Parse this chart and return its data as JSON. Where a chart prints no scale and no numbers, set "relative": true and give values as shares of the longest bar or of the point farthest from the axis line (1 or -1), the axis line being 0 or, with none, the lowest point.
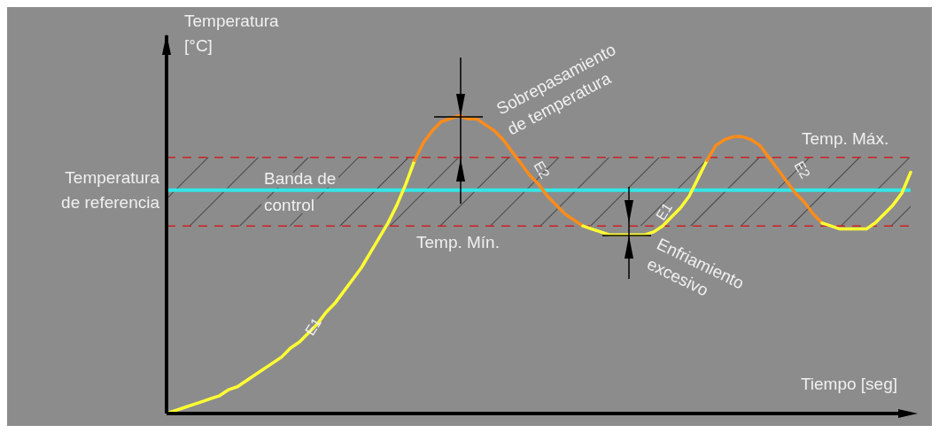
{
  "chart_data": {
    "type": "line",
    "relative": true,
    "xlabel": "Tiempo [seg]",
    "ylabel": "Temperatura [°C]",
    "categories": [
      null,
      null,
      null,
      null,
      null,
      null,
      null,
      null,
      null,
      null,
      null,
      null,
      null,
      null,
      null,
      null,
      null,
      null,
      null,
      null,
      null,
      null,
      null,
      null,
      null,
      null,
      null,
      null,
      null,
      null,
      null,
      null,
      null,
      null,
      null,
      null,
      null,
      null,
      null,
      null,
      null,
      null,
      null,
      null,
      null,
      null,
      null,
      null,
      null,
      null,
      null,
      null,
      null,
      null,
      null,
      null,
      null,
      null,
      null,
      null,
      null,
      null,
      null,
      null,
      null,
      null,
      null,
      null,
      null,
      null,
      null,
      null,
      null,
      null,
      null,
      null,
      null,
      null,
      null,
      null,
      null,
      null,
      null,
      null,
      null
    ],
    "series": [
      {
        "color": "#ffff33",
        "values": [
          0,
          0.01,
          0.02,
          0.03,
          0.04,
          0.05,
          0.06,
          0.08,
          0.09,
          0.11,
          0.13,
          0.15,
          0.17,
          0.19,
          0.22,
          0.24,
          0.27,
          0.3,
          0.34,
          0.37,
          0.41,
          0.45,
          0.49,
          0.54,
          0.59,
          0.64,
          0.7,
          0.77,
          0.85,
          null,
          null,
          null,
          null,
          null,
          null,
          null,
          null,
          null,
          null,
          null,
          null,
          null,
          null,
          null,
          null,
          null,
          null,
          null,
          null,
          null,
          null,
          null,
          null,
          null,
          null,
          null,
          null,
          null,
          null,
          null,
          null,
          null,
          null,
          null,
          null,
          null,
          null,
          null,
          null,
          null,
          null,
          null,
          null,
          null,
          null,
          null,
          null,
          null,
          null,
          null,
          null,
          null,
          null,
          null,
          null
        ]
      },
      {
        "color": "#ff8c1a",
        "values": [
          null,
          null,
          null,
          null,
          null,
          null,
          null,
          null,
          null,
          null,
          null,
          null,
          null,
          null,
          null,
          null,
          null,
          null,
          null,
          null,
          null,
          null,
          null,
          null,
          null,
          null,
          null,
          null,
          0.85,
          0.91,
          0.95,
          0.98,
          0.99,
          1,
          0.99,
          0.99,
          0.97,
          0.95,
          0.92,
          0.88,
          0.84,
          0.8,
          0.77,
          0.73,
          0.7,
          0.67,
          0.65,
          0.63,
          null,
          null,
          null,
          null,
          null,
          null,
          null,
          null,
          null,
          null,
          null,
          null,
          null,
          null,
          null,
          null,
          null,
          null,
          null,
          null,
          null,
          null,
          null,
          null,
          null,
          null,
          null,
          null,
          null,
          null,
          null,
          null,
          null,
          null,
          null,
          null,
          null
        ]
      },
      {
        "color": "#ffff33",
        "values": [
          null,
          null,
          null,
          null,
          null,
          null,
          null,
          null,
          null,
          null,
          null,
          null,
          null,
          null,
          null,
          null,
          null,
          null,
          null,
          null,
          null,
          null,
          null,
          null,
          null,
          null,
          null,
          null,
          null,
          null,
          null,
          null,
          null,
          null,
          null,
          null,
          null,
          null,
          null,
          null,
          null,
          null,
          null,
          null,
          null,
          null,
          null,
          0.63,
          0.62,
          0.61,
          0.6,
          0.6,
          0.6,
          0.6,
          0.6,
          0.61,
          0.63,
          0.66,
          0.69,
          0.73,
          0.79,
          0.85,
          null,
          null,
          null,
          null,
          null,
          null,
          null,
          null,
          null,
          null,
          null,
          null,
          null,
          null,
          null,
          null,
          null,
          null,
          null,
          null,
          null,
          null,
          null
        ]
      },
      {
        "color": "#ff8c1a",
        "values": [
          null,
          null,
          null,
          null,
          null,
          null,
          null,
          null,
          null,
          null,
          null,
          null,
          null,
          null,
          null,
          null,
          null,
          null,
          null,
          null,
          null,
          null,
          null,
          null,
          null,
          null,
          null,
          null,
          null,
          null,
          null,
          null,
          null,
          null,
          null,
          null,
          null,
          null,
          null,
          null,
          null,
          null,
          null,
          null,
          null,
          null,
          null,
          null,
          null,
          null,
          null,
          null,
          null,
          null,
          null,
          null,
          null,
          null,
          null,
          null,
          null,
          0.85,
          0.9,
          0.92,
          0.93,
          0.93,
          0.92,
          0.9,
          0.86,
          0.82,
          0.78,
          0.74,
          0.71,
          0.67,
          0.64,
          null,
          null,
          null,
          null,
          null,
          null,
          null,
          null,
          null,
          null
        ]
      },
      {
        "color": "#ffff33",
        "values": [
          null,
          null,
          null,
          null,
          null,
          null,
          null,
          null,
          null,
          null,
          null,
          null,
          null,
          null,
          null,
          null,
          null,
          null,
          null,
          null,
          null,
          null,
          null,
          null,
          null,
          null,
          null,
          null,
          null,
          null,
          null,
          null,
          null,
          null,
          null,
          null,
          null,
          null,
          null,
          null,
          null,
          null,
          null,
          null,
          null,
          null,
          null,
          null,
          null,
          null,
          null,
          null,
          null,
          null,
          null,
          null,
          null,
          null,
          null,
          null,
          null,
          null,
          null,
          null,
          null,
          null,
          null,
          null,
          null,
          null,
          null,
          null,
          null,
          null,
          0.64,
          0.63,
          0.62,
          0.62,
          0.62,
          0.62,
          0.64,
          0.67,
          0.7,
          0.74,
          0.81
        ]
      }
    ],
    "ref_lines": [
      {
        "axis": "y",
        "value": 0.75,
        "label": "Temperatura de referencia",
        "color": "#33e6e6"
      },
      {
        "axis": "y",
        "value": 0.86,
        "label": "Temp. Máx.",
        "color": "#cc2222",
        "line_style": "dashed"
      },
      {
        "axis": "y",
        "value": 0.63,
        "label": "Temp. Mín.",
        "color": "#cc2222",
        "line_style": "dashed"
      }
    ],
    "bands": [
      {
        "axis": "y",
        "from": 0.63,
        "to": 0.86,
        "label": "Banda de control"
      }
    ],
    "annotations": [
      "Sobrepasamiento de temperatura",
      "Enfriamiento excesivo",
      "E1",
      "E2",
      "E1",
      "E2"
    ]
  }
}
